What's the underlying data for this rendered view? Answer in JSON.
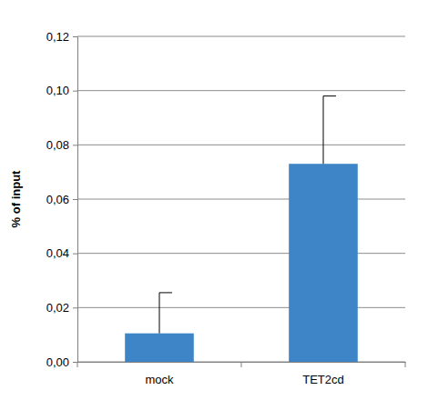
{
  "chart_data": {
    "type": "bar",
    "y_label": "% of input",
    "categories": [
      "mock",
      "TET2cd"
    ],
    "values": [
      0.0105,
      0.073
    ],
    "errors": [
      0.015,
      0.025
    ],
    "color": "#3d85c6",
    "ylim": [
      0,
      0.12
    ],
    "yticks": [
      {
        "value": 0,
        "label": "0,00"
      },
      {
        "value": 0.02,
        "label": "0,02"
      },
      {
        "value": 0.04,
        "label": "0,04"
      },
      {
        "value": 0.06,
        "label": "0,06"
      },
      {
        "value": 0.08,
        "label": "0,08"
      },
      {
        "value": 0.1,
        "label": "0,10"
      },
      {
        "value": 0.12,
        "label": "0,12"
      }
    ],
    "grid": true
  }
}
